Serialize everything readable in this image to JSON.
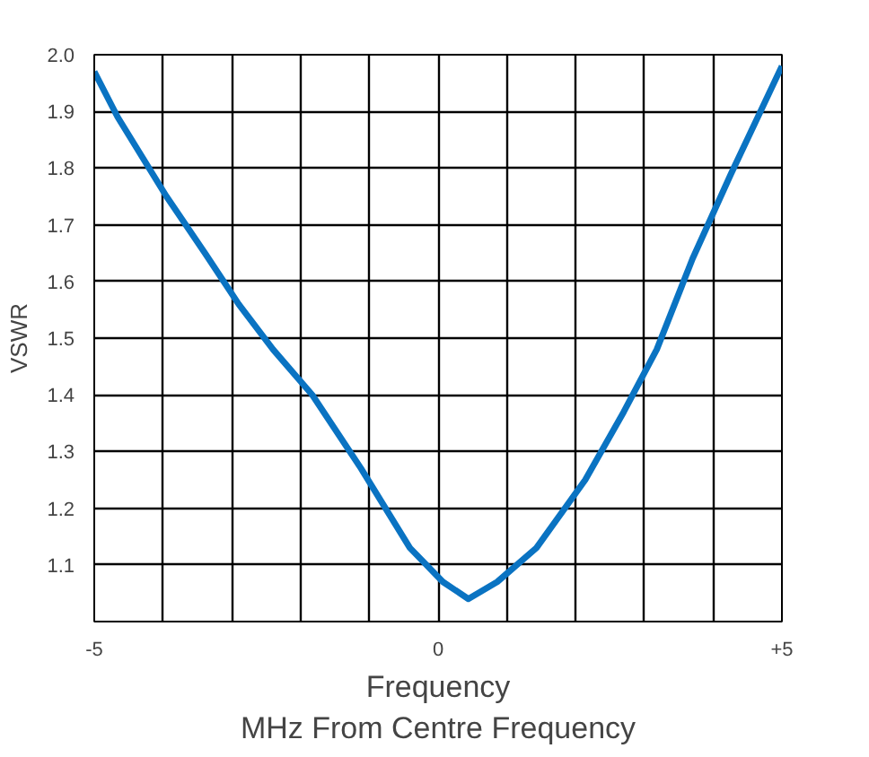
{
  "chart_data": {
    "type": "line",
    "xlabel": "Frequency\nMHz From Centre Frequency",
    "ylabel": "VSWR",
    "x": [
      -5,
      -4.66,
      -3.95,
      -3.39,
      -2.9,
      -2.4,
      -1.83,
      -1.12,
      -0.41,
      0.07,
      0.44,
      0.86,
      1.43,
      2.14,
      2.7,
      3.18,
      3.7,
      4.26,
      5
    ],
    "series": [
      {
        "color": "#0a73c2",
        "values": [
          1.97,
          1.89,
          1.75,
          1.65,
          1.56,
          1.48,
          1.4,
          1.27,
          1.13,
          1.07,
          1.04,
          1.07,
          1.13,
          1.25,
          1.37,
          1.48,
          1.64,
          1.79,
          1.98
        ]
      }
    ],
    "xlim": [
      -5,
      5
    ],
    "ylim": [
      1.0,
      2.0
    ],
    "xticks": [
      -5,
      {
        "value": -4,
        "label": null
      },
      {
        "value": -3,
        "label": null
      },
      {
        "value": -2,
        "label": null
      },
      {
        "value": -1,
        "label": null
      },
      0,
      {
        "value": 1,
        "label": null
      },
      {
        "value": 2,
        "label": null
      },
      {
        "value": 3,
        "label": null
      },
      {
        "value": 4,
        "label": null
      },
      {
        "value": 5,
        "label": "+5"
      }
    ],
    "yticks": [
      {
        "value": 1.0,
        "label": null
      },
      1.1,
      1.2,
      1.3,
      1.4,
      1.5,
      1.6,
      1.7,
      1.8,
      1.9,
      {
        "value": 2.0,
        "label": "2.0"
      }
    ],
    "grid": true
  }
}
